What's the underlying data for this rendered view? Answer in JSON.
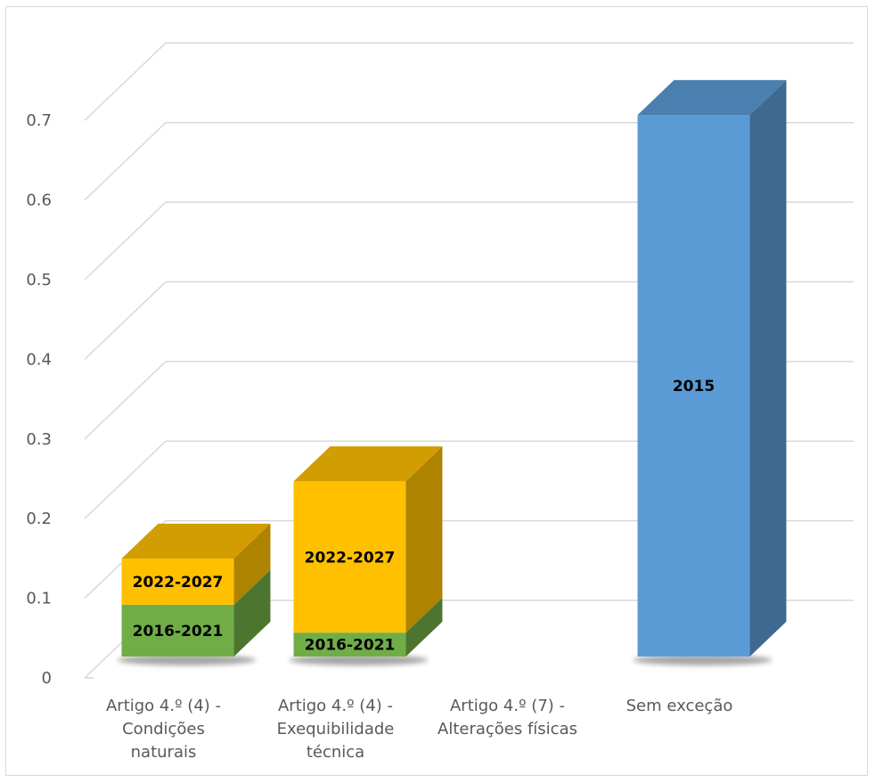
{
  "chart_data": {
    "type": "bar",
    "stacked": true,
    "three_d": true,
    "title": "",
    "xlabel": "",
    "ylabel": "",
    "ylim": [
      0,
      0.7
    ],
    "y_ticks": [
      "0",
      "0.1",
      "0.2",
      "0.3",
      "0.4",
      "0.5",
      "0.6",
      "0.7"
    ],
    "grid": true,
    "legend": "none",
    "categories": [
      "Artigo 4.º (4) - Condições naturais",
      "Artigo 4.º (4) - Exequibilidade técnica",
      "Artigo 4.º (7) - Alterações físicas",
      "Sem exceção"
    ],
    "series": [
      {
        "name": "2016-2021",
        "color": "#70AD47",
        "values": [
          0.065,
          0.03,
          0,
          0
        ]
      },
      {
        "name": "2022-2027",
        "color": "#FFC000",
        "values": [
          0.058,
          0.19,
          0,
          0
        ]
      },
      {
        "name": "2015",
        "color": "#5B9BD5",
        "values": [
          0,
          0,
          0,
          0.68
        ]
      }
    ]
  }
}
